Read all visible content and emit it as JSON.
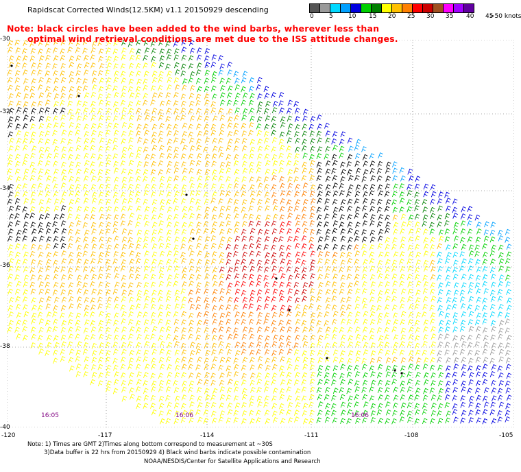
{
  "title": "Rapidscat Corrected Winds(12.5KM) v1.1 20150929 descending",
  "note": {
    "line1": "Note: black circles have been added to the wind barbs, wherever less than",
    "line2": "optimal wind retrieval conditions are met due to the ISS attitude changes."
  },
  "colorbar": {
    "labels": [
      "0",
      "5",
      "10",
      "15",
      "20",
      "25",
      "30",
      "35",
      "40",
      "45",
      ">50 knots"
    ],
    "colors": [
      "#555555",
      "#9a9a9a",
      "#00d8ff",
      "#00a0ff",
      "#0000e0",
      "#00d000",
      "#008000",
      "#ffff00",
      "#ffc000",
      "#ff8000",
      "#ff0000",
      "#cc0000",
      "#a05020",
      "#ff00ff",
      "#a000ff",
      "#6000a0"
    ]
  },
  "map": {
    "lat_labels": [
      "-30",
      "-32",
      "-34",
      "-36",
      "-38",
      "-40"
    ],
    "lon_labels": [
      "-120",
      "-117",
      "-114",
      "-111",
      "-108",
      "-105"
    ],
    "time_labels": [
      "16:05",
      "16:06",
      "16:06"
    ]
  },
  "footer": {
    "line1": "Note: 1) Times are GMT 2)Times along bottom correspond to measurement at ~30S",
    "line2": "3)Data buffer is 22 hrs from 20150929 4) Black wind barbs indicate possible contamination",
    "line3": "NOAA/NESDIS/Center for Satellite Applications and Research"
  }
}
